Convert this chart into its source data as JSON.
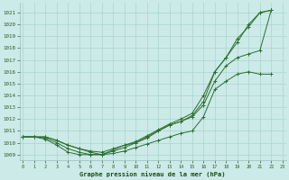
{
  "xlabel": "Graphe pression niveau de la mer (hPa)",
  "x_ticks": [
    0,
    1,
    2,
    3,
    4,
    5,
    6,
    7,
    8,
    9,
    10,
    11,
    12,
    13,
    14,
    15,
    16,
    17,
    18,
    19,
    20,
    21,
    22,
    23
  ],
  "ylim": [
    1008.5,
    1021.8
  ],
  "xlim": [
    -0.3,
    23.3
  ],
  "yticks": [
    1009,
    1010,
    1011,
    1012,
    1013,
    1014,
    1015,
    1016,
    1017,
    1018,
    1019,
    1020,
    1021
  ],
  "bg_color": "#cceae8",
  "grid_color": "#aad4d0",
  "line_color": "#2d6e2d",
  "series": [
    [
      1010.5,
      1010.5,
      1010.5,
      1010.2,
      1009.8,
      1009.5,
      1009.3,
      1009.2,
      1009.5,
      1009.8,
      1010.0,
      1010.5,
      1011.0,
      1011.5,
      1011.8,
      1012.3,
      1013.5,
      1016.0,
      1017.2,
      1018.5,
      1020.0,
      1021.0,
      1021.2
    ],
    [
      1010.5,
      1010.5,
      1010.3,
      1009.8,
      1009.2,
      1009.0,
      1009.0,
      1009.0,
      1009.1,
      1009.3,
      1009.6,
      1009.9,
      1010.2,
      1010.5,
      1010.8,
      1011.0,
      1012.2,
      1014.5,
      1015.2,
      1015.8,
      1016.0,
      1015.8,
      1015.8
    ],
    [
      1010.5,
      1010.5,
      1010.5,
      1010.2,
      1009.8,
      1009.5,
      1009.2,
      1009.0,
      1009.4,
      1009.8,
      1010.1,
      1010.6,
      1011.1,
      1011.6,
      1012.0,
      1012.5,
      1014.0,
      1016.0,
      1017.2,
      1018.8,
      1019.8,
      1021.0,
      1021.2
    ],
    [
      1010.5,
      1010.5,
      1010.4,
      1010.0,
      1009.5,
      1009.2,
      1009.0,
      1009.0,
      1009.3,
      1009.6,
      1010.0,
      1010.4,
      1011.0,
      1011.5,
      1011.8,
      1012.2,
      1013.2,
      1015.2,
      1016.5,
      1017.2,
      1017.5,
      1017.8,
      1021.2
    ]
  ]
}
